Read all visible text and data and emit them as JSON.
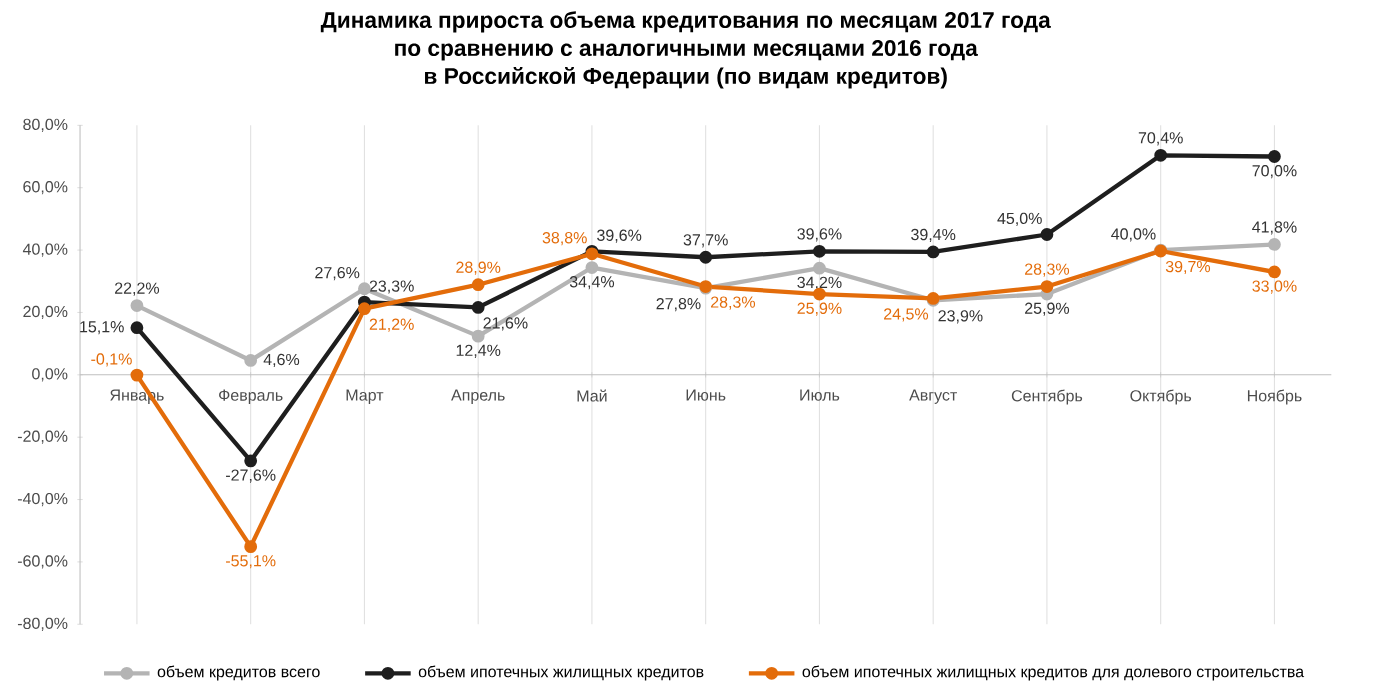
{
  "chart_data": {
    "type": "line",
    "title": "Динамика прироста объема кредитования по месяцам 2017 года\nпо сравнению с аналогичными месяцами 2016 года\nв Российской Федерации (по видам кредитов)",
    "categories": [
      "Январь",
      "Февраль",
      "Март",
      "Апрель",
      "Май",
      "Июнь",
      "Июль",
      "Август",
      "Сентябрь",
      "Октябрь",
      "Ноябрь"
    ],
    "series": [
      {
        "name": "объем кредитов всего",
        "color": "#b4b4b4",
        "values": [
          22.2,
          4.6,
          27.6,
          12.4,
          34.4,
          27.8,
          34.2,
          23.9,
          25.9,
          40.0,
          41.8
        ],
        "value_labels": [
          "22,2%",
          "4,6%",
          "27,6%",
          "12,4%",
          "34,4%",
          "27,8%",
          "34,2%",
          "23,9%",
          "25,9%",
          "40,0%",
          "41,8%"
        ]
      },
      {
        "name": "объем ипотечных жилищных кредитов",
        "color": "#1e1e1e",
        "values": [
          15.1,
          -27.6,
          23.3,
          21.6,
          39.6,
          37.7,
          39.6,
          39.4,
          45.0,
          70.4,
          70.0
        ],
        "value_labels": [
          "15,1%",
          "-27,6%",
          "23,3%",
          "21,6%",
          "39,6%",
          "37,7%",
          "39,6%",
          "39,4%",
          "45,0%",
          "70,4%",
          "70,0%"
        ]
      },
      {
        "name": "объем ипотечных жилищных кредитов для долевого строительства",
        "color": "#e36c0a",
        "values": [
          -0.1,
          -55.1,
          21.2,
          28.9,
          38.8,
          28.3,
          25.9,
          24.5,
          28.3,
          39.7,
          33.0
        ],
        "value_labels": [
          "-0,1%",
          "-55,1%",
          "21,2%",
          "28,9%",
          "38,8%",
          "28,3%",
          "25,9%",
          "24,5%",
          "28,3%",
          "39,7%",
          "33,0%"
        ]
      }
    ],
    "ylim": [
      -80,
      80
    ],
    "yticks": [
      {
        "value": -80,
        "label": "-80,0%"
      },
      {
        "value": -60,
        "label": "-60,0%"
      },
      {
        "value": -40,
        "label": "-40,0%"
      },
      {
        "value": -20,
        "label": "-20,0%"
      },
      {
        "value": 0,
        "label": "0,0%"
      },
      {
        "value": 20,
        "label": "20,0%"
      },
      {
        "value": 40,
        "label": "40,0%"
      },
      {
        "value": 60,
        "label": "60,0%"
      },
      {
        "value": 80,
        "label": "80,0%"
      }
    ],
    "grid": "x",
    "legend": "bottom",
    "marker": "circle",
    "line_style": "solid"
  }
}
